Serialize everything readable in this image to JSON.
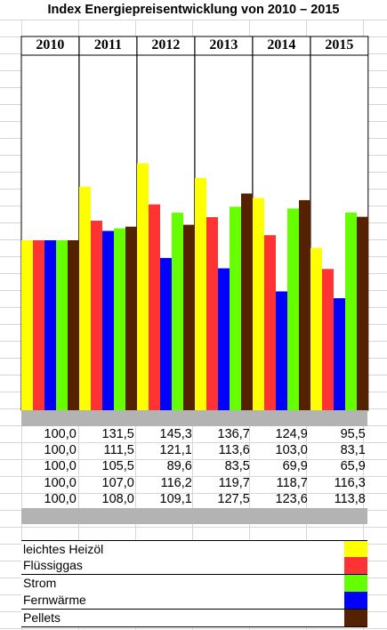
{
  "title": "Index Energiepreisentwicklung von 2010 – 2015",
  "chart_data": {
    "type": "bar",
    "title": "Index Energiepreisentwicklung von 2010 – 2015",
    "categories": [
      "2010",
      "2011",
      "2012",
      "2013",
      "2014",
      "2015"
    ],
    "series": [
      {
        "name": "leichtes Heizöl",
        "color": "#ffff00",
        "values": [
          100.0,
          131.5,
          145.3,
          136.7,
          124.9,
          95.5
        ],
        "labels": [
          "100,0",
          "131,5",
          "145,3",
          "136,7",
          "124,9",
          "95,5"
        ]
      },
      {
        "name": "Flüssiggas",
        "color": "#ff3333",
        "values": [
          100.0,
          111.5,
          121.1,
          113.6,
          103.0,
          83.1
        ],
        "labels": [
          "100,0",
          "111,5",
          "121,1",
          "113,6",
          "103,0",
          "83,1"
        ]
      },
      {
        "name": "Fernwärme",
        "color": "#0000ff",
        "values": [
          100.0,
          105.5,
          89.6,
          83.5,
          69.9,
          65.9
        ],
        "labels": [
          "100,0",
          "105,5",
          "89,6",
          "83,5",
          "69,9",
          "65,9"
        ]
      },
      {
        "name": "Strom",
        "color": "#66ff00",
        "values": [
          100.0,
          107.0,
          116.2,
          119.7,
          118.7,
          116.3
        ],
        "labels": [
          "100,0",
          "107,0",
          "116,2",
          "119,7",
          "118,7",
          "116,3"
        ]
      },
      {
        "name": "Pellets",
        "color": "#552200",
        "values": [
          100.0,
          108.0,
          109.1,
          127.5,
          123.6,
          113.8
        ],
        "labels": [
          "100,0",
          "108,0",
          "109,1",
          "127,5",
          "123,6",
          "113,8"
        ]
      }
    ]
  },
  "legend": [
    {
      "label": "leichtes Heizöl",
      "color": "#ffff00"
    },
    {
      "label": "Flüssiggas",
      "color": "#ff3333"
    },
    {
      "label": "Strom",
      "color": "#66ff00"
    },
    {
      "label": "Fernwärme",
      "color": "#0000ff"
    },
    {
      "label": "Pellets",
      "color": "#552200"
    }
  ]
}
